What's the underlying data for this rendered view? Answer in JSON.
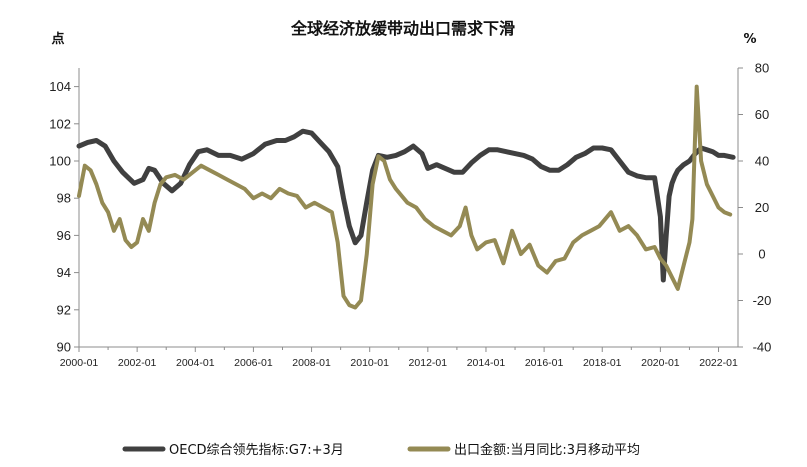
{
  "chart_data": {
    "type": "line",
    "title": "全球经济放缓带动出口需求下滑",
    "left_unit": "点",
    "right_unit": "%",
    "left_axis": {
      "min": 90,
      "max": 105,
      "ticks": [
        90,
        92,
        94,
        96,
        98,
        100,
        102,
        104
      ]
    },
    "right_axis": {
      "min": -40,
      "max": 80,
      "ticks": [
        -40,
        -20,
        0,
        20,
        40,
        60,
        80
      ]
    },
    "x_axis": {
      "start": 2000.0,
      "end": 2022.67,
      "tick_labels": [
        "2000-01",
        "2002-01",
        "2004-01",
        "2006-01",
        "2008-01",
        "2010-01",
        "2012-01",
        "2014-01",
        "2016-01",
        "2018-01",
        "2020-01",
        "2022-01"
      ]
    },
    "grid": false,
    "legend_position": "bottom",
    "series": [
      {
        "name": "OECD综合领先指标:G7:+3月",
        "axis": "left",
        "color": "#404040",
        "x": [
          2000.0,
          2000.3,
          2000.6,
          2000.9,
          2001.2,
          2001.5,
          2001.9,
          2002.2,
          2002.4,
          2002.6,
          2002.9,
          2003.2,
          2003.5,
          2003.8,
          2004.1,
          2004.4,
          2004.8,
          2005.2,
          2005.6,
          2006.0,
          2006.4,
          2006.8,
          2007.1,
          2007.4,
          2007.7,
          2008.0,
          2008.3,
          2008.6,
          2008.9,
          2009.1,
          2009.3,
          2009.5,
          2009.7,
          2009.9,
          2010.1,
          2010.3,
          2010.6,
          2010.9,
          2011.2,
          2011.5,
          2011.8,
          2012.0,
          2012.3,
          2012.6,
          2012.9,
          2013.2,
          2013.5,
          2013.8,
          2014.1,
          2014.4,
          2014.7,
          2015.0,
          2015.3,
          2015.6,
          2015.9,
          2016.2,
          2016.5,
          2016.8,
          2017.1,
          2017.4,
          2017.7,
          2018.0,
          2018.3,
          2018.6,
          2018.9,
          2019.2,
          2019.5,
          2019.8,
          2020.0,
          2020.1,
          2020.2,
          2020.3,
          2020.4,
          2020.5,
          2020.6,
          2020.8,
          2021.0,
          2021.2,
          2021.4,
          2021.6,
          2021.8,
          2022.0,
          2022.2,
          2022.5
        ],
        "values": [
          100.8,
          101.0,
          101.1,
          100.8,
          100.0,
          99.4,
          98.8,
          99.0,
          99.6,
          99.5,
          98.8,
          98.4,
          98.8,
          99.8,
          100.5,
          100.6,
          100.3,
          100.3,
          100.1,
          100.4,
          100.9,
          101.1,
          101.1,
          101.3,
          101.6,
          101.5,
          101.0,
          100.5,
          99.7,
          98.0,
          96.5,
          95.6,
          96.0,
          97.8,
          99.5,
          100.3,
          100.2,
          100.3,
          100.5,
          100.8,
          100.4,
          99.6,
          99.8,
          99.6,
          99.4,
          99.4,
          99.9,
          100.3,
          100.6,
          100.6,
          100.5,
          100.4,
          100.3,
          100.1,
          99.7,
          99.5,
          99.5,
          99.8,
          100.2,
          100.4,
          100.7,
          100.7,
          100.6,
          100.0,
          99.4,
          99.2,
          99.1,
          99.1,
          97.0,
          93.6,
          96.0,
          98.1,
          98.8,
          99.2,
          99.5,
          99.8,
          100.0,
          100.4,
          100.7,
          100.6,
          100.5,
          100.3,
          100.3,
          100.2
        ]
      },
      {
        "name": "出口金额:当月同比:3月移动平均",
        "axis": "right",
        "color": "#948a54",
        "x": [
          2000.0,
          2000.2,
          2000.4,
          2000.6,
          2000.8,
          2001.0,
          2001.2,
          2001.4,
          2001.6,
          2001.8,
          2002.0,
          2002.2,
          2002.4,
          2002.6,
          2002.8,
          2003.0,
          2003.3,
          2003.6,
          2003.9,
          2004.2,
          2004.5,
          2004.8,
          2005.1,
          2005.4,
          2005.7,
          2006.0,
          2006.3,
          2006.6,
          2006.9,
          2007.2,
          2007.5,
          2007.8,
          2008.1,
          2008.4,
          2008.7,
          2008.9,
          2009.1,
          2009.3,
          2009.5,
          2009.7,
          2009.9,
          2010.1,
          2010.3,
          2010.5,
          2010.7,
          2010.9,
          2011.1,
          2011.3,
          2011.6,
          2011.9,
          2012.2,
          2012.5,
          2012.8,
          2013.1,
          2013.3,
          2013.5,
          2013.7,
          2014.0,
          2014.3,
          2014.6,
          2014.9,
          2015.2,
          2015.5,
          2015.8,
          2016.1,
          2016.4,
          2016.7,
          2017.0,
          2017.3,
          2017.6,
          2017.9,
          2018.1,
          2018.3,
          2018.6,
          2018.9,
          2019.2,
          2019.5,
          2019.8,
          2020.0,
          2020.2,
          2020.4,
          2020.6,
          2020.8,
          2021.0,
          2021.1,
          2021.25,
          2021.4,
          2021.6,
          2021.8,
          2022.0,
          2022.2,
          2022.4
        ],
        "values": [
          25,
          38,
          36,
          30,
          22,
          18,
          10,
          15,
          6,
          3,
          5,
          15,
          10,
          22,
          30,
          33,
          34,
          32,
          35,
          38,
          36,
          34,
          32,
          30,
          28,
          24,
          26,
          24,
          28,
          26,
          25,
          20,
          22,
          20,
          18,
          5,
          -18,
          -22,
          -23,
          -20,
          0,
          30,
          42,
          40,
          32,
          28,
          25,
          22,
          20,
          15,
          12,
          10,
          8,
          12,
          20,
          8,
          2,
          5,
          6,
          -4,
          10,
          0,
          4,
          -5,
          -8,
          -3,
          -2,
          5,
          8,
          10,
          12,
          15,
          18,
          10,
          12,
          8,
          2,
          3,
          -2,
          -5,
          -10,
          -15,
          -5,
          5,
          15,
          72,
          40,
          30,
          25,
          20,
          18,
          17
        ]
      }
    ]
  }
}
